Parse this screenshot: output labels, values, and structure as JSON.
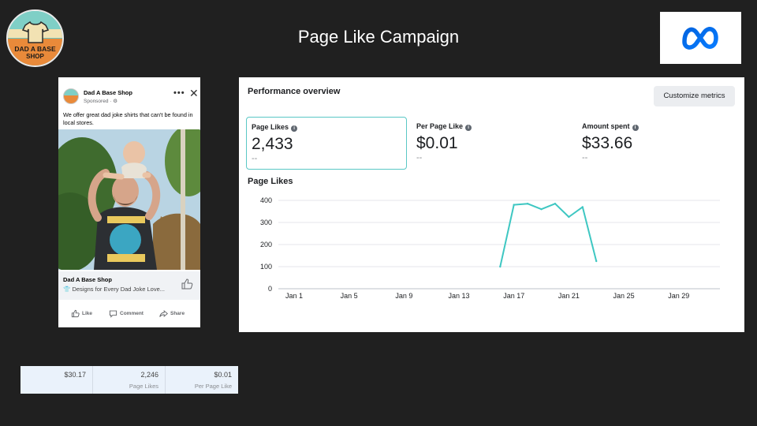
{
  "slide": {
    "title": "Page Like Campaign"
  },
  "shop_logo": {
    "line1": "DAD A BASE",
    "line2": "SHOP",
    "icon": "tshirt-icon"
  },
  "meta_logo": {
    "icon": "meta-infinity-icon",
    "color": "#0866ff"
  },
  "ad": {
    "page_name": "Dad A Base Shop",
    "sponsored": "Sponsored · ⚙",
    "more": "•••",
    "close": "✕",
    "text": "We offer great dad joke shirts that can't be found in local stores.",
    "footer_title": "Dad A Base Shop",
    "footer_subtitle": "Designs for Every Dad Joke Love...",
    "actions": {
      "like": "Like",
      "comment": "Comment",
      "share": "Share"
    }
  },
  "performance": {
    "title": "Performance overview",
    "customize_label": "Customize metrics",
    "metrics": [
      {
        "label": "Page Likes",
        "value": "2,433",
        "delta": "--"
      },
      {
        "label": "Per Page Like",
        "value": "$0.01",
        "delta": "--"
      },
      {
        "label": "Amount spent",
        "value": "$33.66",
        "delta": "--"
      }
    ],
    "chart_title": "Page Likes"
  },
  "chart_data": {
    "type": "line",
    "title": "Page Likes",
    "x_tick_labels": [
      "Jan 1",
      "Jan 5",
      "Jan 9",
      "Jan 13",
      "Jan 17",
      "Jan 21",
      "Jan 25",
      "Jan 29"
    ],
    "y_tick_labels": [
      "400",
      "300",
      "200",
      "100",
      "0"
    ],
    "ylim": [
      0,
      400
    ],
    "grid": true,
    "line_color": "#3ec7c2",
    "series": [
      {
        "x": [
          "Jan 16",
          "Jan 17",
          "Jan 18",
          "Jan 19",
          "Jan 20",
          "Jan 21",
          "Jan 22",
          "Jan 23"
        ],
        "values": [
          100,
          380,
          385,
          360,
          385,
          325,
          370,
          125
        ]
      }
    ]
  },
  "bottom_stats": [
    {
      "value": "$30.17",
      "label": ""
    },
    {
      "value": "2,246",
      "label": "Page Likes"
    },
    {
      "value": "$0.01",
      "label": "Per Page Like"
    }
  ]
}
